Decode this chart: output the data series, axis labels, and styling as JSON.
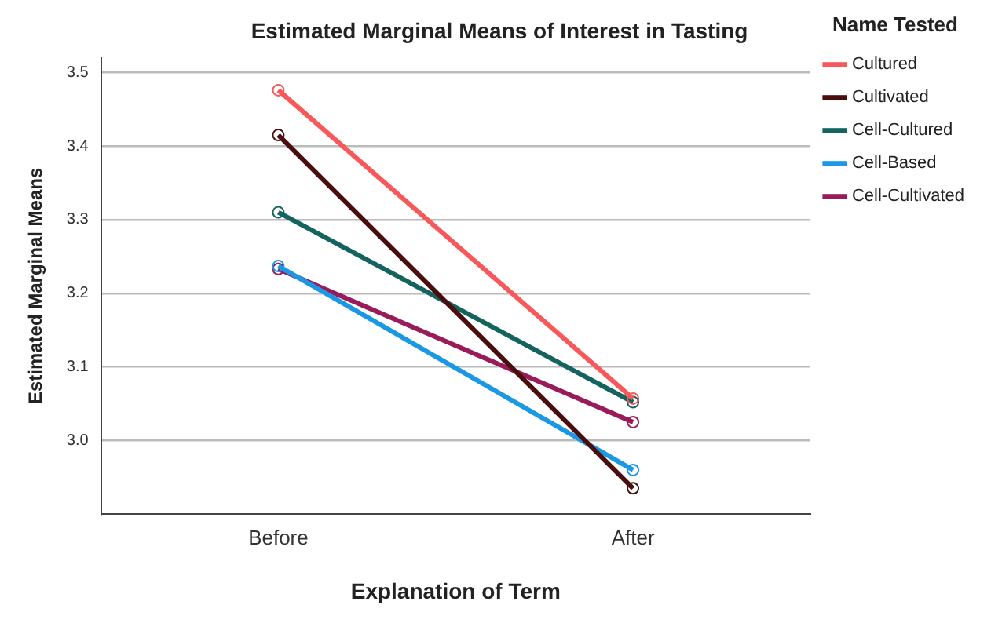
{
  "chart_data": {
    "type": "line",
    "title": "Estimated Marginal Means of Interest in Tasting",
    "xlabel": "Explanation of Term",
    "ylabel": "Estimated Marginal Means",
    "legend_title": "Name Tested",
    "categories": [
      "Before",
      "After"
    ],
    "series": [
      {
        "name": "Cultured",
        "color": "#f8585a",
        "values": [
          3.476,
          3.057
        ]
      },
      {
        "name": "Cultivated",
        "color": "#4a0d0d",
        "values": [
          3.415,
          2.935
        ]
      },
      {
        "name": "Cell-Cultured",
        "color": "#13635e",
        "values": [
          3.31,
          3.052
        ]
      },
      {
        "name": "Cell-Based",
        "color": "#1a98e6",
        "values": [
          3.237,
          2.96
        ]
      },
      {
        "name": "Cell-Cultivated",
        "color": "#9a1b5a",
        "values": [
          3.233,
          3.025
        ]
      }
    ],
    "ylim": [
      2.9,
      3.52
    ],
    "yticks": [
      {
        "value": 3,
        "label": "3.0"
      },
      {
        "value": 3.1,
        "label": "3.1"
      },
      {
        "value": 3.2,
        "label": "3.2"
      },
      {
        "value": 3.3,
        "label": "3.3"
      },
      {
        "value": 3.4,
        "label": "3.4"
      },
      {
        "value": 3.5,
        "label": "3.5"
      }
    ],
    "grid": "y",
    "legend": "top right",
    "marker": "circle",
    "line_style": "solid"
  }
}
